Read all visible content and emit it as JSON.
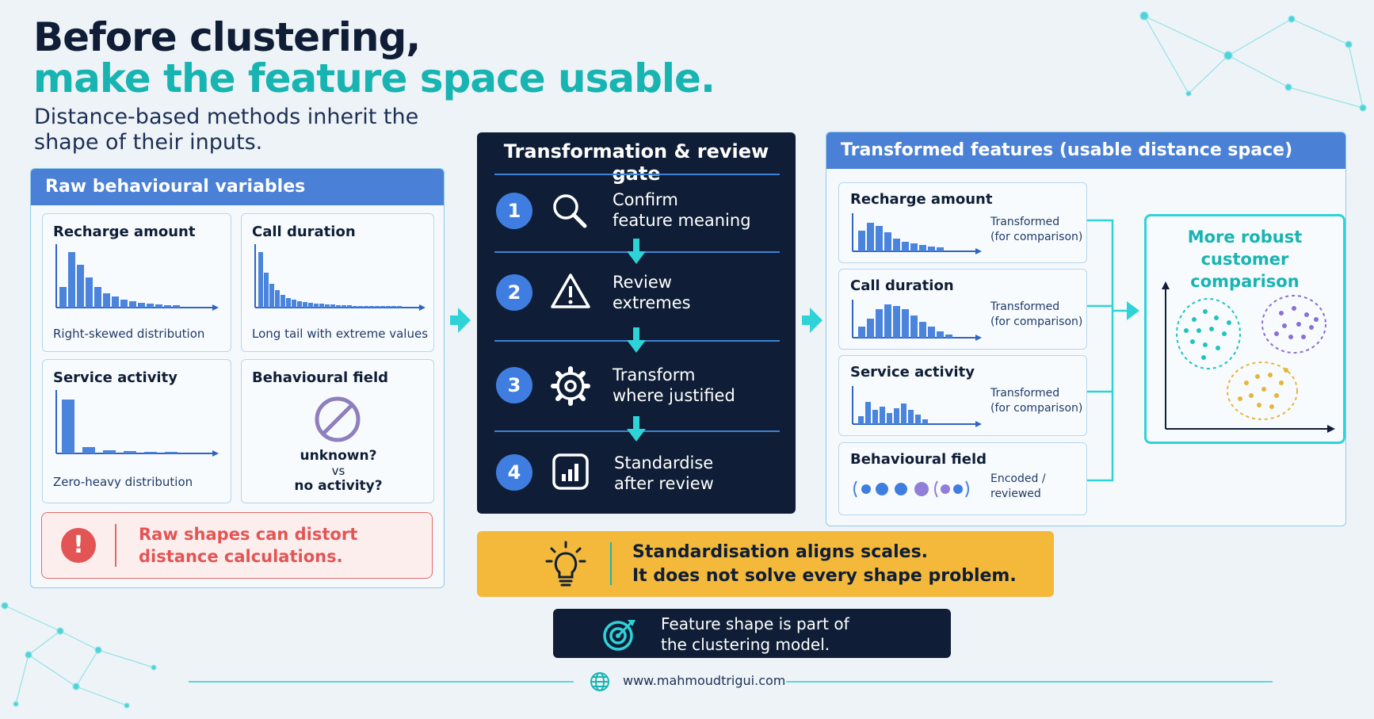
{
  "header": {
    "title_line1": "Before clustering,",
    "title_line2": "make the feature space usable.",
    "subtitle": "Distance-based methods inherit the shape of their inputs."
  },
  "raw_panel": {
    "title": "Raw behavioural variables",
    "cards": [
      {
        "title": "Recharge amount",
        "caption": "Right-skewed distribution"
      },
      {
        "title": "Call duration",
        "caption": "Long tail with extreme values"
      },
      {
        "title": "Service activity",
        "caption": "Zero-heavy distribution"
      },
      {
        "title": "Behavioural field",
        "caption_line1": "unknown?",
        "caption_line2": "vs",
        "caption_line3": "no activity?"
      }
    ],
    "warning_line1": "Raw shapes can distort",
    "warning_line2": "distance calculations."
  },
  "gate": {
    "title": "Transformation & review gate",
    "steps": [
      {
        "number": "1",
        "line1": "Confirm",
        "line2": "feature meaning",
        "icon": "search-icon"
      },
      {
        "number": "2",
        "line1": "Review",
        "line2": "extremes",
        "icon": "warning-icon"
      },
      {
        "number": "3",
        "line1": "Transform",
        "line2": "where justified",
        "icon": "gear-icon"
      },
      {
        "number": "4",
        "line1": "Standardise",
        "line2": "after review",
        "icon": "bar-chart-icon"
      }
    ]
  },
  "transformed_panel": {
    "title": "Transformed features (usable distance space)",
    "cards": [
      {
        "title": "Recharge amount",
        "caption_line1": "Transformed",
        "caption_line2": "(for comparison)"
      },
      {
        "title": "Call duration",
        "caption_line1": "Transformed",
        "caption_line2": "(for comparison)"
      },
      {
        "title": "Service activity",
        "caption_line1": "Transformed",
        "caption_line2": "(for comparison)"
      },
      {
        "title": "Behavioural field",
        "caption_line1": "Encoded /",
        "caption_line2": "reviewed"
      }
    ]
  },
  "result": {
    "title_line1": "More robust",
    "title_line2": "customer comparison"
  },
  "note": {
    "line1": "Standardisation aligns scales.",
    "line2": "It does not solve every shape problem."
  },
  "footer_box": {
    "line1": "Feature shape is part of",
    "line2": "the clustering model."
  },
  "website": "www.mahmoudtrigui.com",
  "colors": {
    "navy": "#0f1e36",
    "teal": "#17b4b1",
    "cyan": "#2ed3d8",
    "blue": "#4a80d6",
    "gold": "#f4b93a",
    "red": "#e35555"
  }
}
